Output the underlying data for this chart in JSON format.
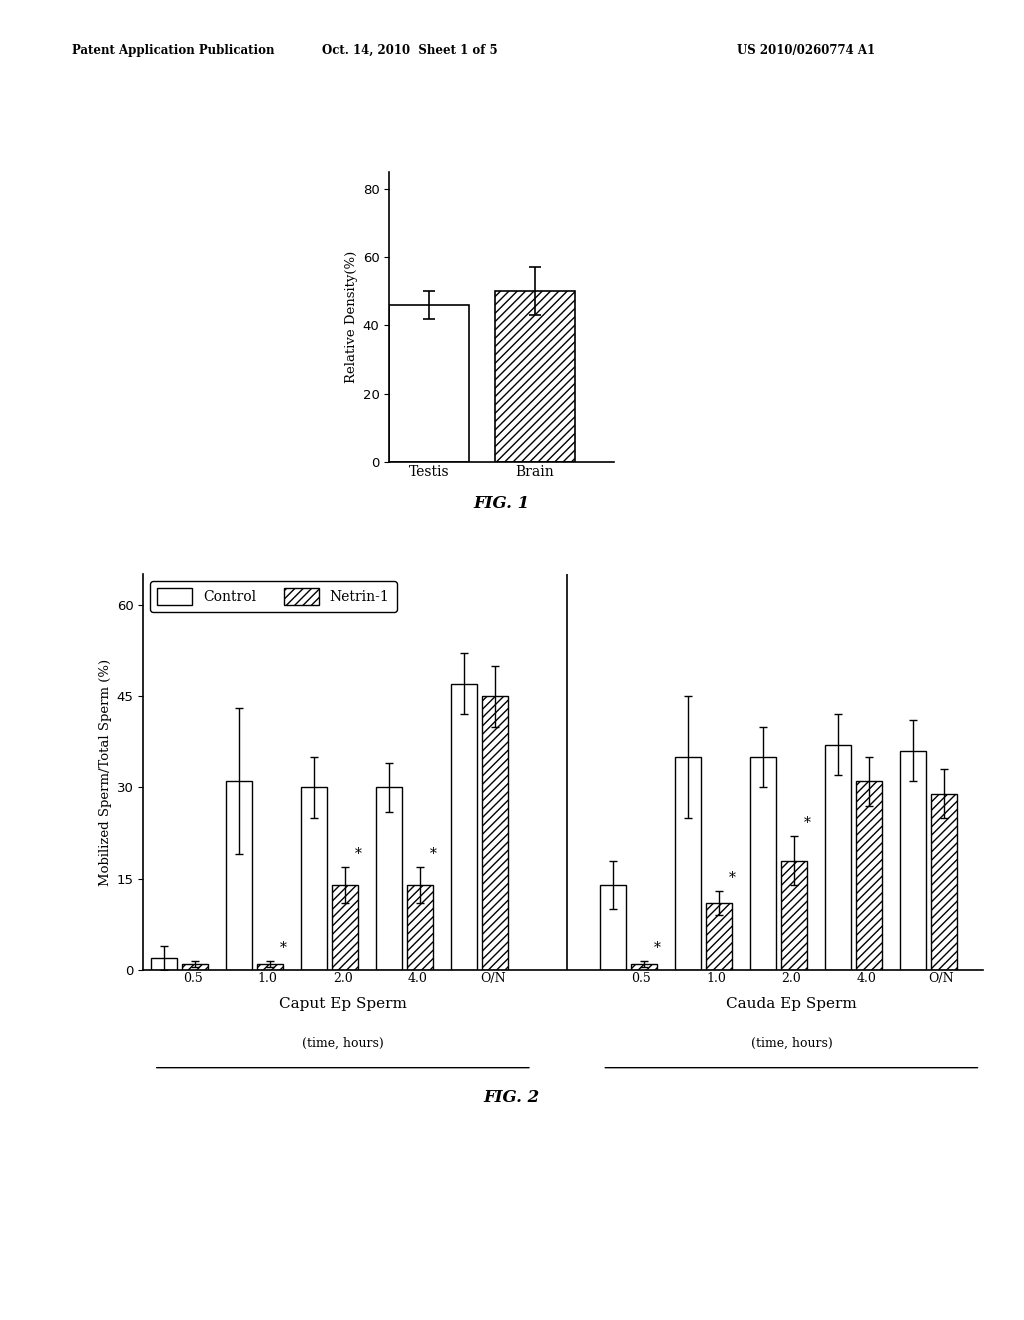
{
  "fig1": {
    "categories": [
      "Testis",
      "Brain"
    ],
    "values": [
      46,
      50
    ],
    "errors": [
      4,
      7
    ],
    "ylabel": "Relative Density(%)",
    "ylim": [
      0,
      85
    ],
    "yticks": [
      0,
      20,
      40,
      60,
      80
    ]
  },
  "fig2": {
    "ylabel": "Mobilized Sperm/Total Sperm (%)",
    "ylim": [
      0,
      65
    ],
    "yticks": [
      0,
      15,
      30,
      45,
      60
    ],
    "time_labels": [
      "0.5",
      "1.0",
      "2.0",
      "4.0",
      "O/N"
    ],
    "caput": {
      "control_values": [
        2,
        31,
        30,
        30,
        47
      ],
      "control_errors": [
        2,
        12,
        5,
        4,
        5
      ],
      "netrin_values": [
        1,
        1,
        14,
        14,
        45
      ],
      "netrin_errors": [
        0.5,
        0.5,
        3,
        3,
        5
      ],
      "netrin_asterisk": [
        false,
        true,
        true,
        true,
        false
      ],
      "label": "Caput Ep Sperm"
    },
    "cauda": {
      "control_values": [
        14,
        35,
        35,
        37,
        36
      ],
      "control_errors": [
        4,
        10,
        5,
        5,
        5
      ],
      "netrin_values": [
        1,
        11,
        18,
        31,
        29
      ],
      "netrin_errors": [
        0.5,
        2,
        4,
        4,
        4
      ],
      "netrin_asterisk": [
        true,
        true,
        true,
        false,
        false
      ],
      "label": "Cauda Ep Sperm"
    },
    "legend_labels": [
      "Control",
      "Netrin-1"
    ]
  },
  "header": {
    "left": "Patent Application Publication",
    "center": "Oct. 14, 2010  Sheet 1 of 5",
    "right": "US 2010/0260774 A1"
  }
}
